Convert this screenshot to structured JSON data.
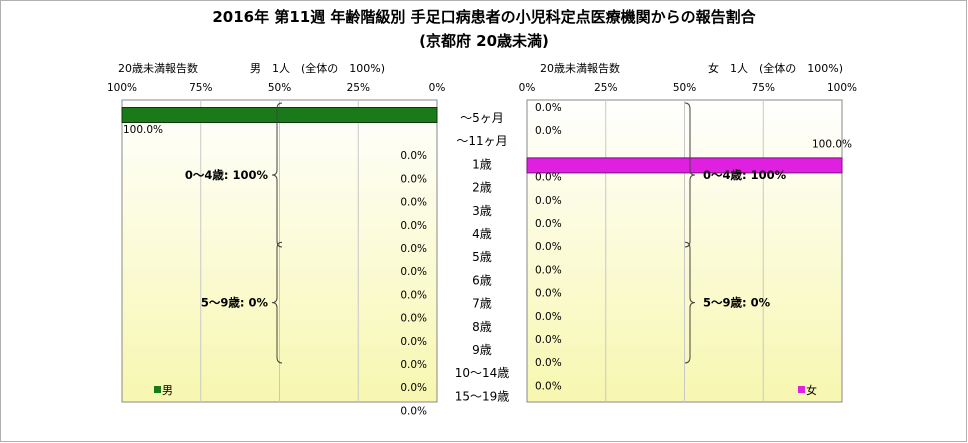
{
  "chart_data": {
    "type": "bar",
    "title": "2016年 第11週 年齢階級別 手足口病患者の小児科定点医療機関からの報告割合",
    "subtitle": "(京都府 20歳未満)",
    "categories": [
      "～5ヶ月",
      "～11ヶ月",
      "1歳",
      "2歳",
      "3歳",
      "4歳",
      "5歳",
      "6歳",
      "7歳",
      "8歳",
      "9歳",
      "10～14歳",
      "15～19歳"
    ],
    "xlim": [
      0,
      100
    ],
    "ticks": [
      "0%",
      "25%",
      "50%",
      "75%",
      "100%"
    ],
    "series": [
      {
        "name": "男",
        "side": "left",
        "color": "#1a7a1a",
        "header_label": "20歳未満報告数",
        "header_summary": "男　1人　(全体の　100%)",
        "values": [
          100,
          0,
          0,
          0,
          0,
          0,
          0,
          0,
          0,
          0,
          0,
          0,
          0
        ],
        "value_labels": [
          "100.0%",
          "0.0%",
          "0.0%",
          "0.0%",
          "0.0%",
          "0.0%",
          "0.0%",
          "0.0%",
          "0.0%",
          "0.0%",
          "0.0%",
          "0.0%",
          "0.0%"
        ],
        "groups": [
          {
            "label": "0～4歳: 100%",
            "from": 0,
            "to": 5
          },
          {
            "label": "5～9歳: 0%",
            "from": 6,
            "to": 10
          }
        ]
      },
      {
        "name": "女",
        "side": "right",
        "color": "#e020e0",
        "header_label": "20歳未満報告数",
        "header_summary": "女　1人　(全体の　100%)",
        "values": [
          0,
          0,
          100,
          0,
          0,
          0,
          0,
          0,
          0,
          0,
          0,
          0,
          0
        ],
        "value_labels": [
          "0.0%",
          "0.0%",
          "100.0%",
          "0.0%",
          "0.0%",
          "0.0%",
          "0.0%",
          "0.0%",
          "0.0%",
          "0.0%",
          "0.0%",
          "0.0%",
          "0.0%"
        ],
        "groups": [
          {
            "label": "0～4歳: 100%",
            "from": 0,
            "to": 5
          },
          {
            "label": "5～9歳: 0%",
            "from": 6,
            "to": 10
          }
        ]
      }
    ]
  }
}
